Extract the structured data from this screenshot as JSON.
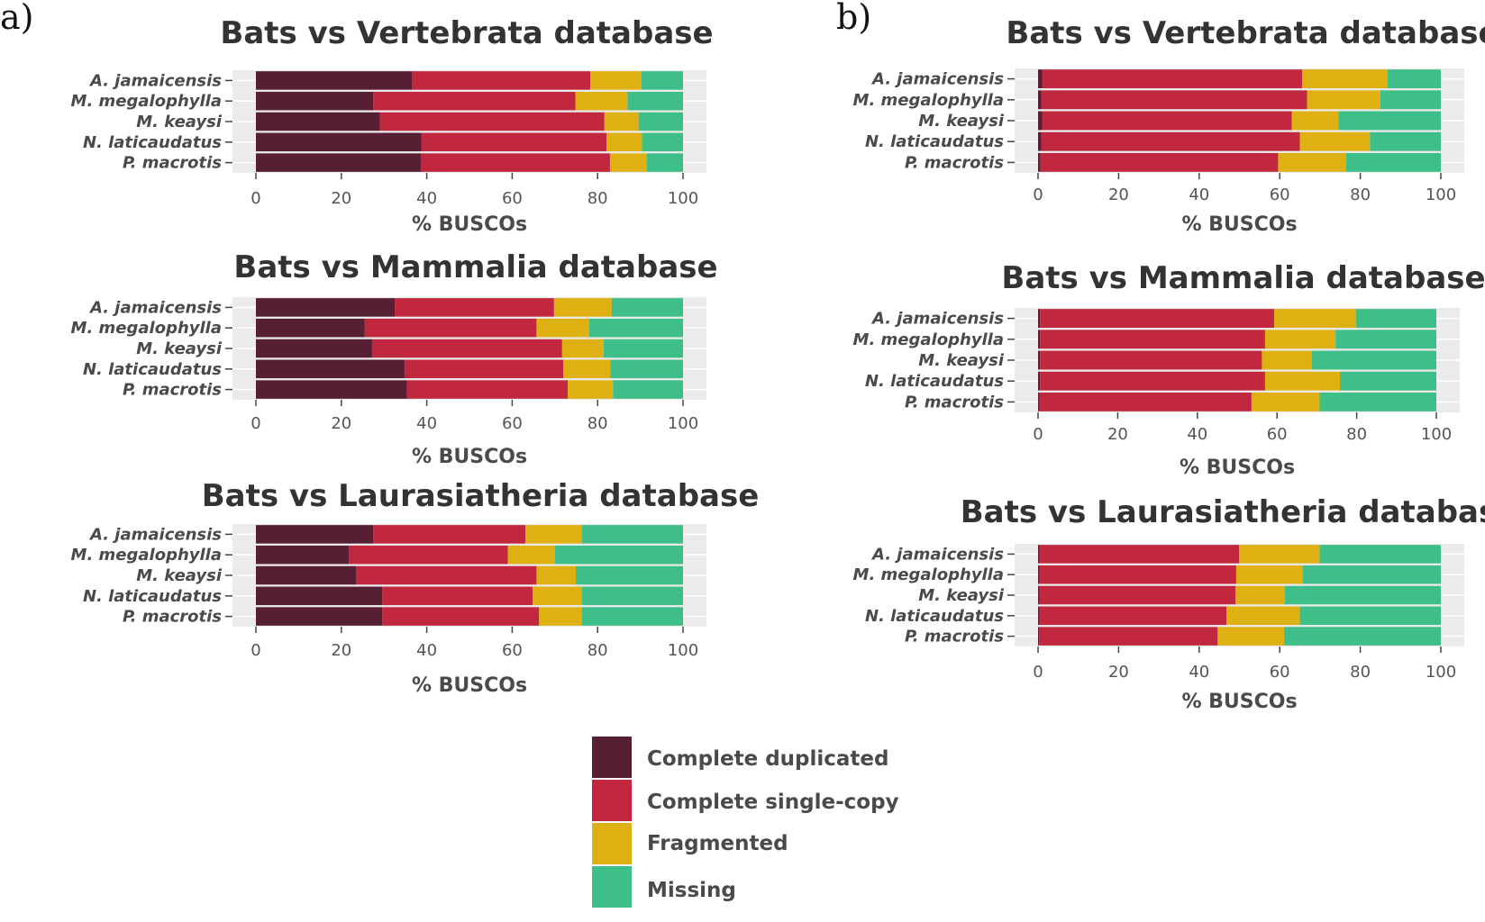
{
  "figure": {
    "panel_labels": [
      "a)",
      "b)"
    ],
    "legend": [
      {
        "label": "Complete duplicated",
        "color": "#561F33"
      },
      {
        "label": "Complete single-copy",
        "color": "#C1273E"
      },
      {
        "label": "Fragmented",
        "color": "#DFB012"
      },
      {
        "label": "Missing",
        "color": "#3EBE88"
      }
    ]
  },
  "chart_data": [
    {
      "panel": "a)",
      "type": "bar",
      "orientation": "horizontal",
      "stacked": true,
      "title": "Bats vs Vertebrata database",
      "xlabel": "% BUSCOs",
      "xlim": [
        0,
        100
      ],
      "xticks": [
        0,
        20,
        40,
        60,
        80,
        100
      ],
      "categories": [
        "A. jamaicensis",
        "M. megalophylla",
        "M. keaysi",
        "N. laticaudatus",
        "P. macrotis"
      ],
      "series": [
        {
          "name": "Complete duplicated",
          "values": [
            36.5,
            27.5,
            29,
            38.8,
            38.6
          ]
        },
        {
          "name": "Complete single-copy",
          "values": [
            41.8,
            47.3,
            52.6,
            43.3,
            44.3
          ]
        },
        {
          "name": "Fragmented",
          "values": [
            12,
            12.2,
            8,
            8.3,
            8.6
          ]
        },
        {
          "name": "Missing",
          "values": [
            9.7,
            13,
            10.4,
            9.6,
            8.5
          ]
        }
      ]
    },
    {
      "panel": "a)",
      "type": "bar",
      "orientation": "horizontal",
      "stacked": true,
      "title": "Bats vs Mammalia database",
      "xlabel": "% BUSCOs",
      "xlim": [
        0,
        100
      ],
      "xticks": [
        0,
        20,
        40,
        60,
        80,
        100
      ],
      "categories": [
        "A. jamaicensis",
        "M. megalophylla",
        "M. keaysi",
        "N. laticaudatus",
        "P. macrotis"
      ],
      "series": [
        {
          "name": "Complete duplicated",
          "values": [
            32.5,
            25.5,
            27.2,
            34.8,
            35.4
          ]
        },
        {
          "name": "Complete single-copy",
          "values": [
            37.3,
            40.2,
            44.5,
            37.2,
            37.6
          ]
        },
        {
          "name": "Fragmented",
          "values": [
            13.5,
            12.3,
            9.7,
            11,
            10.6
          ]
        },
        {
          "name": "Missing",
          "values": [
            16.7,
            22,
            18.6,
            17,
            16.4
          ]
        }
      ]
    },
    {
      "panel": "a)",
      "type": "bar",
      "orientation": "horizontal",
      "stacked": true,
      "title": "Bats vs Laurasiatheria database",
      "xlabel": "% BUSCOs",
      "xlim": [
        0,
        100
      ],
      "xticks": [
        0,
        20,
        40,
        60,
        80,
        100
      ],
      "categories": [
        "A. jamaicensis",
        "M. megalophylla",
        "M. keaysi",
        "N. laticaudatus",
        "P. macrotis"
      ],
      "series": [
        {
          "name": "Complete duplicated",
          "values": [
            27.5,
            21.8,
            23.5,
            29.6,
            29.6
          ]
        },
        {
          "name": "Complete single-copy",
          "values": [
            35.6,
            37.2,
            42.2,
            35.2,
            36.7
          ]
        },
        {
          "name": "Fragmented",
          "values": [
            13.2,
            11,
            9.2,
            11.5,
            10
          ]
        },
        {
          "name": "Missing",
          "values": [
            23.7,
            30,
            25.1,
            23.7,
            23.7
          ]
        }
      ]
    },
    {
      "panel": "b)",
      "type": "bar",
      "orientation": "horizontal",
      "stacked": true,
      "title": "Bats vs Vertebrata database",
      "xlabel": "% BUSCOs",
      "xlim": [
        0,
        100
      ],
      "xticks": [
        0,
        20,
        40,
        60,
        80,
        100
      ],
      "categories": [
        "A. jamaicensis",
        "M. megalophylla",
        "M. keaysi",
        "N. laticaudatus",
        "P. macrotis"
      ],
      "series": [
        {
          "name": "Complete duplicated",
          "values": [
            1,
            0.8,
            1,
            0.8,
            0.6
          ]
        },
        {
          "name": "Complete single-copy",
          "values": [
            64.6,
            66,
            62,
            64.2,
            59
          ]
        },
        {
          "name": "Fragmented",
          "values": [
            21.2,
            18.2,
            11.6,
            17.4,
            16.9
          ]
        },
        {
          "name": "Missing",
          "values": [
            13.2,
            15,
            25.4,
            17.6,
            23.5
          ]
        }
      ]
    },
    {
      "panel": "b)",
      "type": "bar",
      "orientation": "horizontal",
      "stacked": true,
      "title": "Bats vs Mammalia database",
      "xlabel": "% BUSCOs",
      "xlim": [
        0,
        100
      ],
      "xticks": [
        0,
        20,
        40,
        60,
        80,
        100
      ],
      "categories": [
        "A. jamaicensis",
        "M. megalophylla",
        "M. keaysi",
        "N. laticaudatus",
        "P. macrotis"
      ],
      "series": [
        {
          "name": "Complete duplicated",
          "values": [
            0.5,
            0.5,
            0.5,
            0.5,
            0.4
          ]
        },
        {
          "name": "Complete single-copy",
          "values": [
            58.8,
            56.5,
            55.7,
            56.5,
            53.2
          ]
        },
        {
          "name": "Fragmented",
          "values": [
            20.5,
            17.7,
            12.5,
            18.8,
            17.1
          ]
        },
        {
          "name": "Missing",
          "values": [
            20.2,
            25.3,
            31.3,
            24.2,
            29.3
          ]
        }
      ]
    },
    {
      "panel": "b)",
      "type": "bar",
      "orientation": "horizontal",
      "stacked": true,
      "title": "Bats vs Laurasiatheria database",
      "xlabel": "% BUSCOs",
      "xlim": [
        0,
        100
      ],
      "xticks": [
        0,
        20,
        40,
        60,
        80,
        100
      ],
      "categories": [
        "A. jamaicensis",
        "M. megalophylla",
        "M. keaysi",
        "N. laticaudatus",
        "P. macrotis"
      ],
      "series": [
        {
          "name": "Complete duplicated",
          "values": [
            0.4,
            0.4,
            0.4,
            0.4,
            0.3
          ]
        },
        {
          "name": "Complete single-copy",
          "values": [
            49.5,
            48.8,
            48.6,
            46.4,
            44.3
          ]
        },
        {
          "name": "Fragmented",
          "values": [
            20,
            16.5,
            12.3,
            18.2,
            16.5
          ]
        },
        {
          "name": "Missing",
          "values": [
            30.1,
            34.3,
            38.7,
            35,
            38.9
          ]
        }
      ]
    }
  ]
}
